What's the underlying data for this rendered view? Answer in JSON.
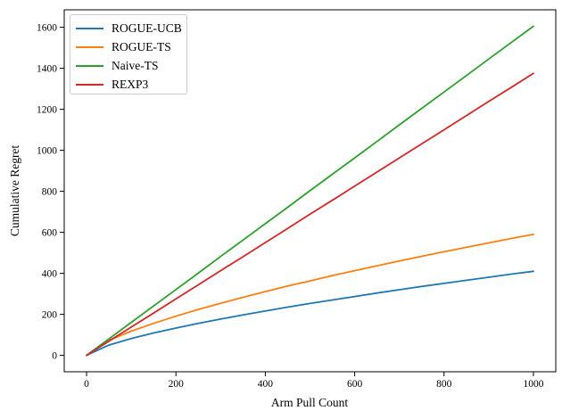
{
  "chart_data": {
    "type": "line",
    "title": "",
    "xlabel": "Arm Pull Count",
    "ylabel": "Cumulative Regret",
    "grid": false,
    "legend_position": "upper-left",
    "background": "#ffffff",
    "axis_color": "#000000",
    "xlim": [
      -50,
      1050
    ],
    "ylim": [
      -80,
      1685
    ],
    "xticks": [
      0,
      200,
      400,
      600,
      800,
      1000
    ],
    "yticks": [
      0,
      200,
      400,
      600,
      800,
      1000,
      1200,
      1400,
      1600
    ],
    "x": [
      0,
      50,
      100,
      150,
      200,
      250,
      300,
      350,
      400,
      450,
      500,
      550,
      600,
      650,
      700,
      750,
      800,
      850,
      900,
      950,
      1000
    ],
    "series": [
      {
        "name": "ROGUE-UCB",
        "color": "#1f77b4",
        "values": [
          0,
          50,
          82,
          109,
          133,
          156,
          177,
          197,
          216,
          235,
          253,
          270,
          287,
          304,
          320,
          336,
          351,
          366,
          381,
          396,
          410
        ]
      },
      {
        "name": "ROGUE-TS",
        "color": "#ff7f0e",
        "values": [
          0,
          73,
          118,
          156,
          191,
          224,
          254,
          283,
          311,
          338,
          363,
          389,
          413,
          437,
          460,
          483,
          505,
          527,
          548,
          570,
          590
        ]
      },
      {
        "name": "Naive-TS",
        "color": "#2ca02c",
        "values": [
          0,
          80,
          161,
          241,
          321,
          401,
          482,
          562,
          642,
          722,
          803,
          883,
          963,
          1043,
          1124,
          1204,
          1284,
          1364,
          1445,
          1525,
          1605
        ]
      },
      {
        "name": "REXP3",
        "color": "#d62728",
        "values": [
          0,
          69,
          138,
          206,
          275,
          344,
          413,
          481,
          550,
          619,
          688,
          756,
          825,
          894,
          963,
          1031,
          1100,
          1169,
          1238,
          1306,
          1375
        ]
      }
    ]
  }
}
